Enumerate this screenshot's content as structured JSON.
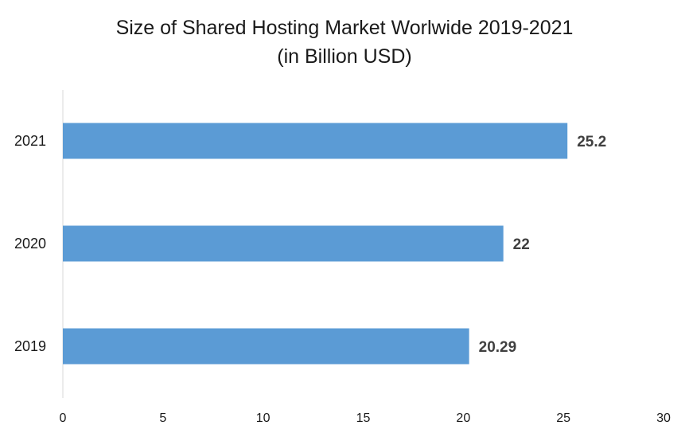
{
  "chart_data": {
    "type": "bar",
    "orientation": "horizontal",
    "title": "Size of Shared Hosting Market Worlwide 2019-2021",
    "subtitle": "(in Billion USD)",
    "categories": [
      "2021",
      "2020",
      "2019"
    ],
    "values": [
      25.2,
      22,
      20.29
    ],
    "data_labels": [
      "25.2",
      "22",
      "20.29"
    ],
    "xlim": [
      0,
      30
    ],
    "x_ticks": [
      "0",
      "5",
      "10",
      "15",
      "20",
      "25",
      "30"
    ],
    "xlabel": "",
    "ylabel": "",
    "grid": false,
    "legend": "none",
    "bar_color": "#5b9bd5"
  }
}
